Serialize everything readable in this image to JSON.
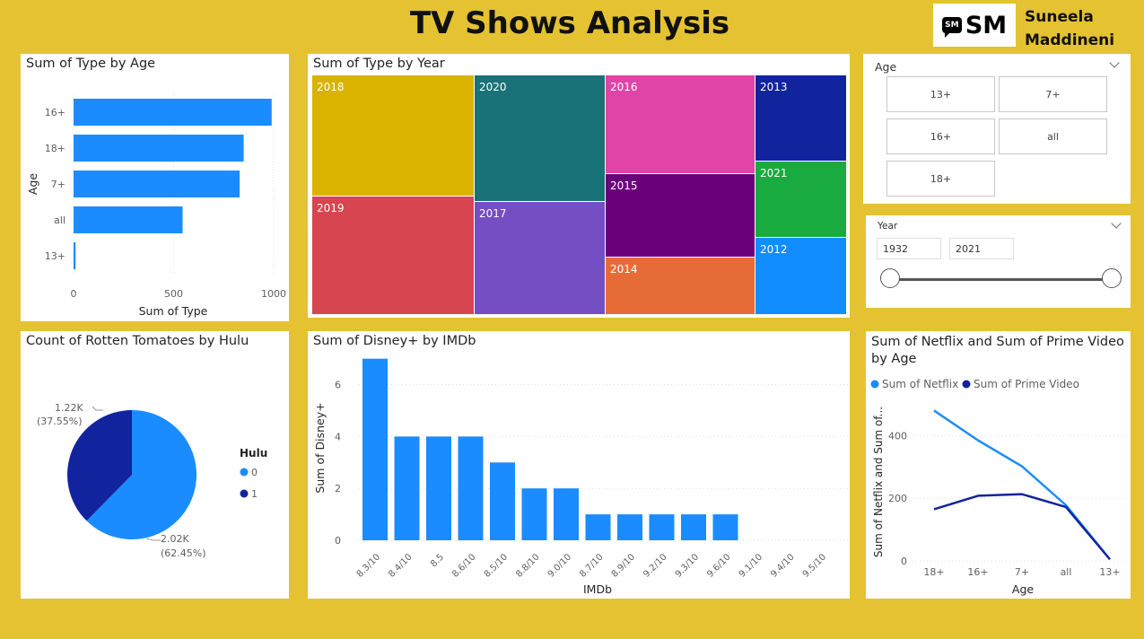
{
  "header": {
    "title": "TV Shows Analysis",
    "logo_text": "SM",
    "logo_bubble": "SM",
    "author_first": "Suneela",
    "author_last": "Maddineni"
  },
  "colors": {
    "background": "#E4C232",
    "bar_blue": "#1A8CFF",
    "dark_navy": "#12239E"
  },
  "bar_age": {
    "title": "Sum of Type by Age",
    "chart_data": {
      "type": "bar",
      "orientation": "horizontal",
      "categories": [
        "16+",
        "18+",
        "7+",
        "all",
        "13+"
      ],
      "values": [
        990,
        850,
        830,
        545,
        10
      ],
      "xlabel": "Sum of Type",
      "ylabel": "Age",
      "xlim": [
        0,
        1000
      ],
      "xticks": [
        "0",
        "500",
        "1000"
      ]
    }
  },
  "treemap": {
    "title": "Sum of Type by Year",
    "chart_data": {
      "type": "treemap",
      "tiles": [
        {
          "label": "2018",
          "color": "#D9B300"
        },
        {
          "label": "2019",
          "color": "#D64550"
        },
        {
          "label": "2020",
          "color": "#197278"
        },
        {
          "label": "2017",
          "color": "#744EC2"
        },
        {
          "label": "2016",
          "color": "#E044A7"
        },
        {
          "label": "2015",
          "color": "#6B007B"
        },
        {
          "label": "2014",
          "color": "#E66C37"
        },
        {
          "label": "2013",
          "color": "#12239E"
        },
        {
          "label": "2021",
          "color": "#1AAB40"
        },
        {
          "label": "2012",
          "color": "#118DFF"
        }
      ]
    }
  },
  "age_slicer": {
    "title": "Age",
    "options": [
      "13+",
      "7+",
      "16+",
      "all",
      "18+"
    ]
  },
  "year_slicer": {
    "title": "Year",
    "from": "1932",
    "to": "2021"
  },
  "pie": {
    "title": "Count of Rotten Tomatoes by Hulu",
    "legend_title": "Hulu",
    "chart_data": {
      "type": "pie",
      "slices": [
        {
          "name": "0",
          "value": 2020,
          "percent": 62.45,
          "label_value": "2.02K",
          "label_pct": "(62.45%)",
          "color": "#1A8CFF"
        },
        {
          "name": "1",
          "value": 1220,
          "percent": 37.55,
          "label_value": "1.22K",
          "label_pct": "(37.55%)",
          "color": "#12239E"
        }
      ]
    }
  },
  "column_imdb": {
    "title": "Sum of Disney+ by IMDb",
    "chart_data": {
      "type": "bar",
      "categories": [
        "8.3/10",
        "8.4/10",
        "8.5",
        "8.6/10",
        "8.5/10",
        "8.8/10",
        "9.0/10",
        "8.7/10",
        "8.9/10",
        "9.2/10",
        "9.3/10",
        "9.6/10",
        "9.1/10",
        "9.4/10",
        "9.5/10"
      ],
      "values": [
        7,
        4,
        4,
        4,
        3,
        2,
        2,
        1,
        1,
        1,
        1,
        1,
        0,
        0,
        0
      ],
      "xlabel": "IMDb",
      "ylabel": "Sum of Disney+",
      "ylim": [
        0,
        7.3
      ],
      "yticks": [
        "0",
        "2",
        "4",
        "6"
      ]
    }
  },
  "line_age": {
    "title_line1": "Sum of Netflix and Sum of Prime Video",
    "title_line2": "by Age",
    "chart_data": {
      "type": "line",
      "categories": [
        "18+",
        "16+",
        "7+",
        "all",
        "13+"
      ],
      "series": [
        {
          "name": "Sum of Netflix",
          "values": [
            480,
            385,
            302,
            178,
            5
          ],
          "color": "#1A8CFF"
        },
        {
          "name": "Sum of Prime Video",
          "values": [
            165,
            208,
            213,
            172,
            5
          ],
          "color": "#12239E"
        }
      ],
      "xlabel": "Age",
      "ylabel": "Sum of Netflix and Sum of...",
      "ylim": [
        0,
        510
      ],
      "yticks": [
        "0",
        "200",
        "400"
      ]
    }
  }
}
